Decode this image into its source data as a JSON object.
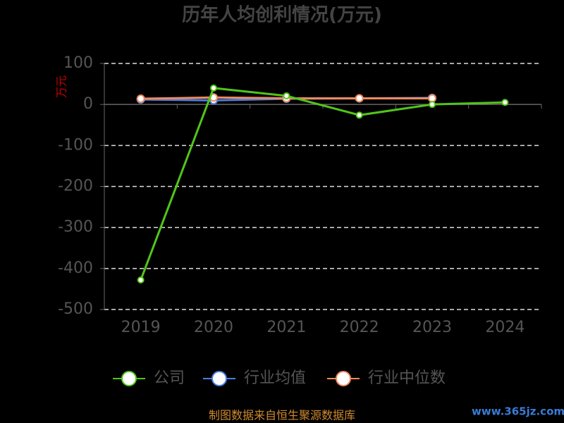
{
  "chart_data": {
    "type": "line",
    "title": "历年人均创利情况(万元)",
    "y_label": "万元",
    "categories": [
      "2019",
      "2020",
      "2021",
      "2022",
      "2023",
      "2024"
    ],
    "series": [
      {
        "name": "公司",
        "color": "#52c41a",
        "values": [
          -428,
          40,
          21,
          -26,
          0,
          5
        ]
      },
      {
        "name": "行业均值",
        "color": "#4a7fe0",
        "values": [
          12,
          10,
          14,
          15,
          16,
          null
        ]
      },
      {
        "name": "行业中位数",
        "color": "#f08a5d",
        "values": [
          14,
          17,
          15,
          15,
          15,
          null
        ]
      }
    ],
    "ylim": [
      -500,
      100
    ],
    "yticks": [
      -500,
      -400,
      -300,
      -200,
      -100,
      0,
      100
    ],
    "grid": true,
    "legend": "bottom",
    "footer": "制图数据来自恒生聚源数据库",
    "watermark": "www.365jz.com"
  }
}
